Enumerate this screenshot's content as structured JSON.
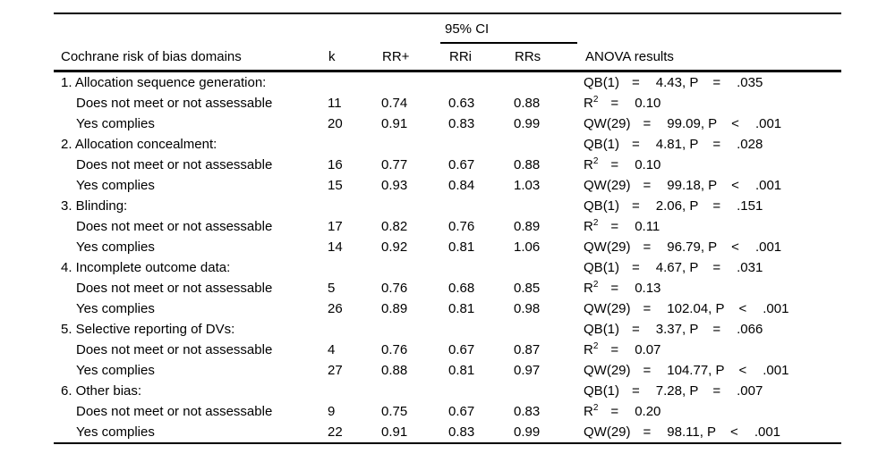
{
  "colors": {
    "text": "#000000",
    "background": "#ffffff",
    "rule": "#000000"
  },
  "table": {
    "headers": {
      "domain": "Cochrane risk of bias domains",
      "k": "k",
      "rr": "RR+",
      "ci": "95% CI",
      "ci_lo": "RRi",
      "ci_hi": "RRs",
      "anova": "ANOVA results"
    },
    "rows": [
      {
        "type": "section",
        "label": "1. Allocation sequence generation:",
        "k": "",
        "rr": "",
        "ci_lo": "",
        "ci_hi": "",
        "anova": {
          "term": "QB(1)",
          "sup": "",
          "a": "=",
          "value": "4.43, P",
          "b": "=",
          "p": ".035"
        }
      },
      {
        "type": "sub",
        "label": "Does not meet or not assessable",
        "k": "11",
        "rr": "0.74",
        "ci_lo": "0.63",
        "ci_hi": "0.88",
        "anova": {
          "term": "R",
          "sup": "2",
          "a": "=",
          "value": "0.10",
          "b": "",
          "p": ""
        }
      },
      {
        "type": "sub",
        "label": "Yes complies",
        "k": "20",
        "rr": "0.91",
        "ci_lo": "0.83",
        "ci_hi": "0.99",
        "anova": {
          "term": "QW(29)",
          "sup": "",
          "a": "=",
          "value": "99.09, P",
          "b": "<",
          "p": ".001"
        }
      },
      {
        "type": "section",
        "label": "2. Allocation concealment:",
        "k": "",
        "rr": "",
        "ci_lo": "",
        "ci_hi": "",
        "anova": {
          "term": "QB(1)",
          "sup": "",
          "a": "=",
          "value": "4.81, P",
          "b": "=",
          "p": ".028"
        }
      },
      {
        "type": "sub",
        "label": "Does not meet or not assessable",
        "k": "16",
        "rr": "0.77",
        "ci_lo": "0.67",
        "ci_hi": "0.88",
        "anova": {
          "term": "R",
          "sup": "2",
          "a": "=",
          "value": "0.10",
          "b": "",
          "p": ""
        }
      },
      {
        "type": "sub",
        "label": "Yes complies",
        "k": "15",
        "rr": "0.93",
        "ci_lo": "0.84",
        "ci_hi": "1.03",
        "anova": {
          "term": "QW(29)",
          "sup": "",
          "a": "=",
          "value": "99.18, P",
          "b": "<",
          "p": ".001"
        }
      },
      {
        "type": "section",
        "label": "3. Blinding:",
        "k": "",
        "rr": "",
        "ci_lo": "",
        "ci_hi": "",
        "anova": {
          "term": "QB(1)",
          "sup": "",
          "a": "=",
          "value": "2.06, P",
          "b": "=",
          "p": ".151"
        }
      },
      {
        "type": "sub",
        "label": "Does not meet or not assessable",
        "k": "17",
        "rr": "0.82",
        "ci_lo": "0.76",
        "ci_hi": "0.89",
        "anova": {
          "term": "R",
          "sup": "2",
          "a": "=",
          "value": "0.11",
          "b": "",
          "p": ""
        }
      },
      {
        "type": "sub",
        "label": "Yes complies",
        "k": "14",
        "rr": "0.92",
        "ci_lo": "0.81",
        "ci_hi": "1.06",
        "anova": {
          "term": "QW(29)",
          "sup": "",
          "a": "=",
          "value": "96.79, P",
          "b": "<",
          "p": ".001"
        }
      },
      {
        "type": "section",
        "label": "4. Incomplete outcome data:",
        "k": "",
        "rr": "",
        "ci_lo": "",
        "ci_hi": "",
        "anova": {
          "term": "QB(1)",
          "sup": "",
          "a": "=",
          "value": "4.67, P",
          "b": "=",
          "p": ".031"
        }
      },
      {
        "type": "sub",
        "label": "Does not meet or not assessable",
        "k": "5",
        "rr": "0.76",
        "ci_lo": "0.68",
        "ci_hi": "0.85",
        "anova": {
          "term": "R",
          "sup": "2",
          "a": "=",
          "value": "0.13",
          "b": "",
          "p": ""
        }
      },
      {
        "type": "sub",
        "label": "Yes complies",
        "k": "26",
        "rr": "0.89",
        "ci_lo": "0.81",
        "ci_hi": "0.98",
        "anova": {
          "term": "QW(29)",
          "sup": "",
          "a": "=",
          "value": "102.04, P",
          "b": "<",
          "p": ".001"
        }
      },
      {
        "type": "section",
        "label": "5. Selective reporting of DVs:",
        "k": "",
        "rr": "",
        "ci_lo": "",
        "ci_hi": "",
        "anova": {
          "term": "QB(1)",
          "sup": "",
          "a": "=",
          "value": "3.37, P",
          "b": "=",
          "p": ".066"
        }
      },
      {
        "type": "sub",
        "label": "Does not meet or not assessable",
        "k": "4",
        "rr": "0.76",
        "ci_lo": "0.67",
        "ci_hi": "0.87",
        "anova": {
          "term": "R",
          "sup": "2",
          "a": "=",
          "value": "0.07",
          "b": "",
          "p": ""
        }
      },
      {
        "type": "sub",
        "label": "Yes complies",
        "k": "27",
        "rr": "0.88",
        "ci_lo": "0.81",
        "ci_hi": "0.97",
        "anova": {
          "term": "QW(29)",
          "sup": "",
          "a": "=",
          "value": "104.77, P",
          "b": "<",
          "p": ".001"
        }
      },
      {
        "type": "section",
        "label": "6. Other bias:",
        "k": "",
        "rr": "",
        "ci_lo": "",
        "ci_hi": "",
        "anova": {
          "term": "QB(1)",
          "sup": "",
          "a": "=",
          "value": "7.28, P",
          "b": "=",
          "p": ".007"
        }
      },
      {
        "type": "sub",
        "label": "Does not meet or not assessable",
        "k": "9",
        "rr": "0.75",
        "ci_lo": "0.67",
        "ci_hi": "0.83",
        "anova": {
          "term": "R",
          "sup": "2",
          "a": "=",
          "value": "0.20",
          "b": "",
          "p": ""
        }
      },
      {
        "type": "sub",
        "label": "Yes complies",
        "k": "22",
        "rr": "0.91",
        "ci_lo": "0.83",
        "ci_hi": "0.99",
        "anova": {
          "term": "QW(29)",
          "sup": "",
          "a": "=",
          "value": "98.11, P",
          "b": "<",
          "p": ".001"
        }
      }
    ]
  }
}
